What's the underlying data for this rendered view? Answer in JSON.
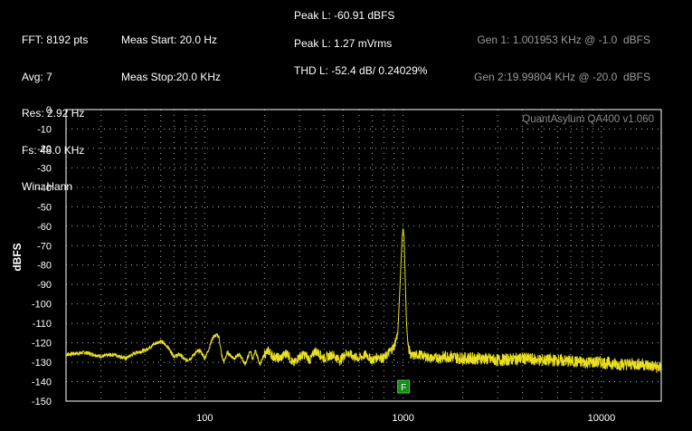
{
  "header": {
    "col1": [
      "FFT: 8192 pts",
      "Avg: 7",
      "Res: 2.92 Hz",
      "Fs: 48.0 KHz",
      "Win: Hann"
    ],
    "col2": [
      "Meas Start: 20.0 Hz",
      "Meas Stop:20.0 KHz"
    ],
    "peak_dbfs": "Peak L: -60.91 dBFS",
    "peak_vrms": "Peak L: 1.27 mVrms",
    "thd": "THD L: -52.4 dB/ 0.24029%",
    "gen1": "Gen 1: 1.001953 KHz @ -1.0  dBFS",
    "gen2": "Gen 2:19.99804 KHz @ -20.0  dBFS"
  },
  "chart_data": {
    "type": "line",
    "watermark": "QuantAsylum QA400 v1.060",
    "ylabel": "dBFS",
    "xlabel": "",
    "x_scale": "log",
    "xlim": [
      20,
      20000
    ],
    "ylim": [
      -150,
      0
    ],
    "x_ticks": [
      100,
      1000,
      10000
    ],
    "x_tick_labels": [
      "100",
      "1000",
      "10000"
    ],
    "y_ticks": [
      0,
      -10,
      -20,
      -30,
      -40,
      -50,
      -60,
      -70,
      -80,
      -90,
      -100,
      -110,
      -120,
      -130,
      -140,
      -150
    ],
    "grid": true,
    "marker": {
      "label": "F",
      "x": 1000,
      "color": "#1a8a1a"
    },
    "colors": {
      "trace": "#e8e020",
      "grid": "#b0b0b0",
      "plot_border": "#ffffff"
    },
    "series": [
      {
        "x": [
          20,
          25,
          30,
          35,
          40,
          45,
          50,
          55,
          60,
          65,
          70,
          75,
          80,
          85,
          90,
          95,
          100,
          105,
          110,
          115,
          118,
          120,
          122,
          125,
          130,
          140,
          150,
          160,
          170,
          175,
          180,
          190,
          200,
          210,
          220,
          240,
          260,
          280,
          300,
          320,
          340,
          360,
          380,
          400,
          440,
          480,
          520,
          560,
          600,
          650,
          700,
          750,
          800,
          850,
          900,
          940,
          960,
          980,
          990,
          1000,
          1010,
          1020,
          1040,
          1060,
          1100,
          1200,
          1400,
          1700,
          2000,
          2500,
          3000,
          4000,
          5000,
          6000,
          8000,
          10000,
          12000,
          14000,
          16000,
          18000,
          20000
        ],
        "y": [
          -126,
          -125,
          -127,
          -126,
          -128,
          -125,
          -124,
          -121,
          -119,
          -122,
          -127,
          -126,
          -129,
          -128,
          -125,
          -124,
          -128,
          -123,
          -117,
          -116,
          -117,
          -122,
          -127,
          -130,
          -125,
          -128,
          -126,
          -131,
          -124,
          -129,
          -124,
          -131,
          -126,
          -124,
          -127,
          -128,
          -125,
          -131,
          -127,
          -126,
          -129,
          -124,
          -126,
          -128,
          -126,
          -129,
          -125,
          -127,
          -128,
          -126,
          -129,
          -127,
          -128,
          -125,
          -122,
          -115,
          -95,
          -75,
          -65,
          -61,
          -65,
          -80,
          -110,
          -122,
          -127,
          -126,
          -128,
          -127,
          -128,
          -128,
          -129,
          -128,
          -129,
          -129,
          -130,
          -130,
          -131,
          -131,
          -131,
          -132,
          -133
        ]
      }
    ]
  }
}
